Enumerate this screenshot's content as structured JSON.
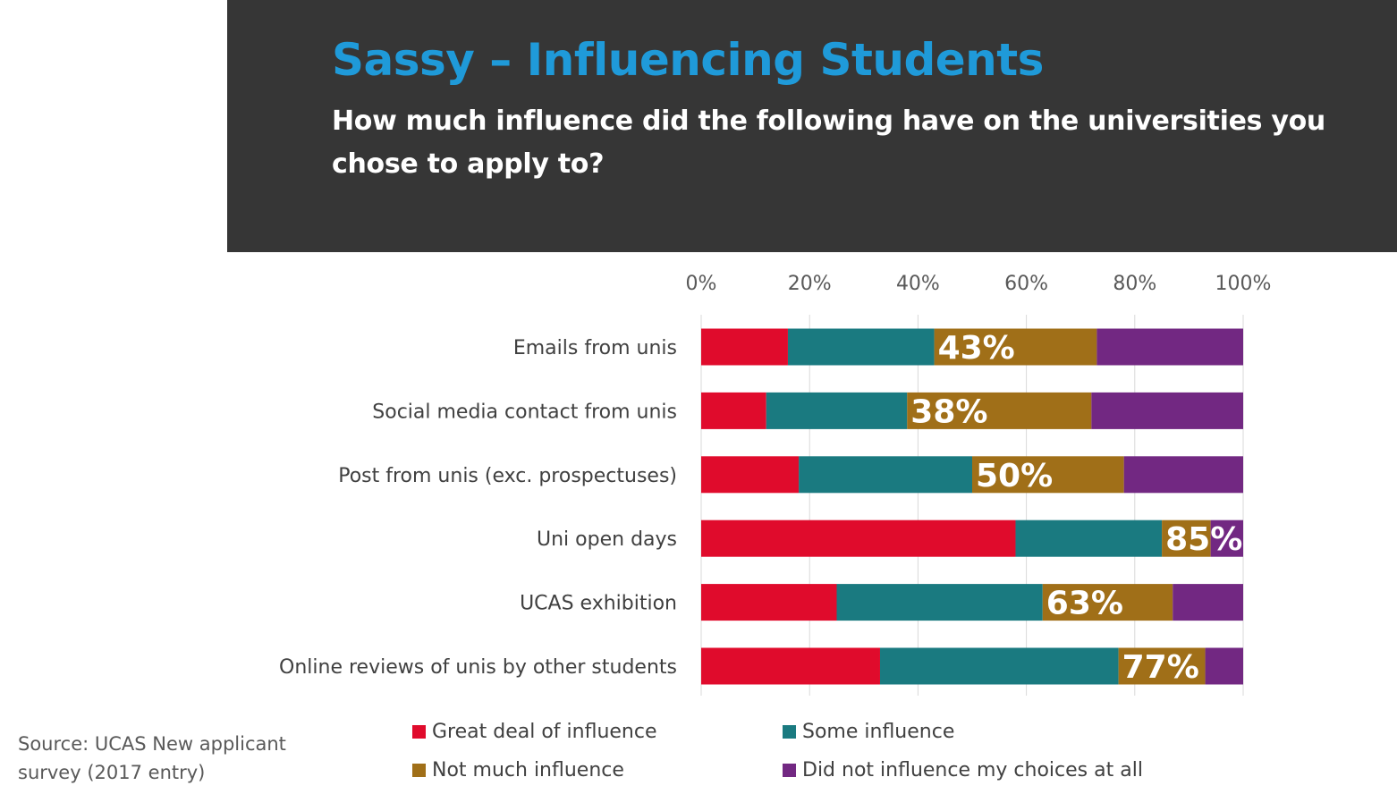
{
  "header": {
    "title": "Sassy – Influencing Students",
    "subtitle": "How much influence did the following have on the universities you chose to apply to?"
  },
  "source": "Source: UCAS New applicant survey (2017 entry)",
  "chart_data": {
    "type": "bar",
    "orientation": "horizontal",
    "stacked": "percent",
    "x_tick_labels": [
      "0%",
      "20%",
      "40%",
      "60%",
      "80%",
      "100%"
    ],
    "xlim": [
      0,
      100
    ],
    "x_axis_position": "top",
    "grid": true,
    "legend_position": "bottom",
    "categories": [
      "Emails from unis",
      "Social media contact from unis",
      "Post from unis (exc. prospectuses)",
      "Uni open days",
      "UCAS exhibition",
      "Online reviews of unis by other students"
    ],
    "series": [
      {
        "name": "Great deal of influence",
        "color": "#e00b2c",
        "values": [
          16,
          12,
          18,
          58,
          25,
          33
        ]
      },
      {
        "name": "Some influence",
        "color": "#1a7a80",
        "values": [
          27,
          26,
          32,
          27,
          38,
          44
        ]
      },
      {
        "name": "Not much influence",
        "color": "#a06f18",
        "values": [
          30,
          34,
          28,
          9,
          24,
          16
        ]
      },
      {
        "name": "Did not influence my choices at all",
        "color": "#722882",
        "values": [
          27,
          28,
          22,
          6,
          13,
          7
        ]
      }
    ],
    "bar_labels": [
      "43%",
      "38%",
      "50%",
      "85%",
      "63%",
      "77%"
    ]
  }
}
